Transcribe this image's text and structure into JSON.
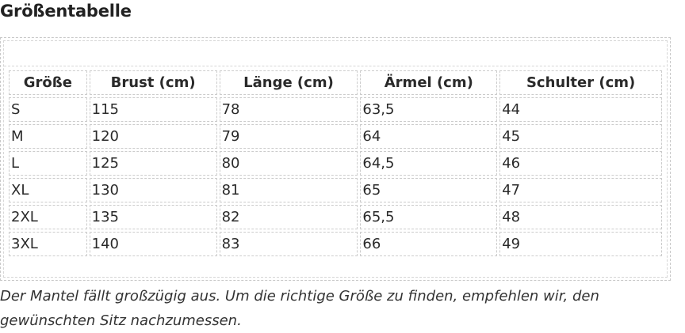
{
  "title": "Größentabelle",
  "table": {
    "headers": [
      "Größe",
      "Brust (cm)",
      "Länge (cm)",
      "Ärmel (cm)",
      "Schulter (cm)"
    ],
    "rows": [
      [
        "S",
        "115",
        "78",
        "63,5",
        "44"
      ],
      [
        "M",
        "120",
        "79",
        "64",
        "45"
      ],
      [
        "L",
        "125",
        "80",
        "64,5",
        "46"
      ],
      [
        "XL",
        "130",
        "81",
        "65",
        "47"
      ],
      [
        "2XL",
        "135",
        "82",
        "65,5",
        "48"
      ],
      [
        "3XL",
        "140",
        "83",
        "66",
        "49"
      ]
    ]
  },
  "note": "Der Mantel fällt großzügig aus. Um die richtige Größe zu finden, empfehlen wir, den gewünschten Sitz nachzumessen."
}
